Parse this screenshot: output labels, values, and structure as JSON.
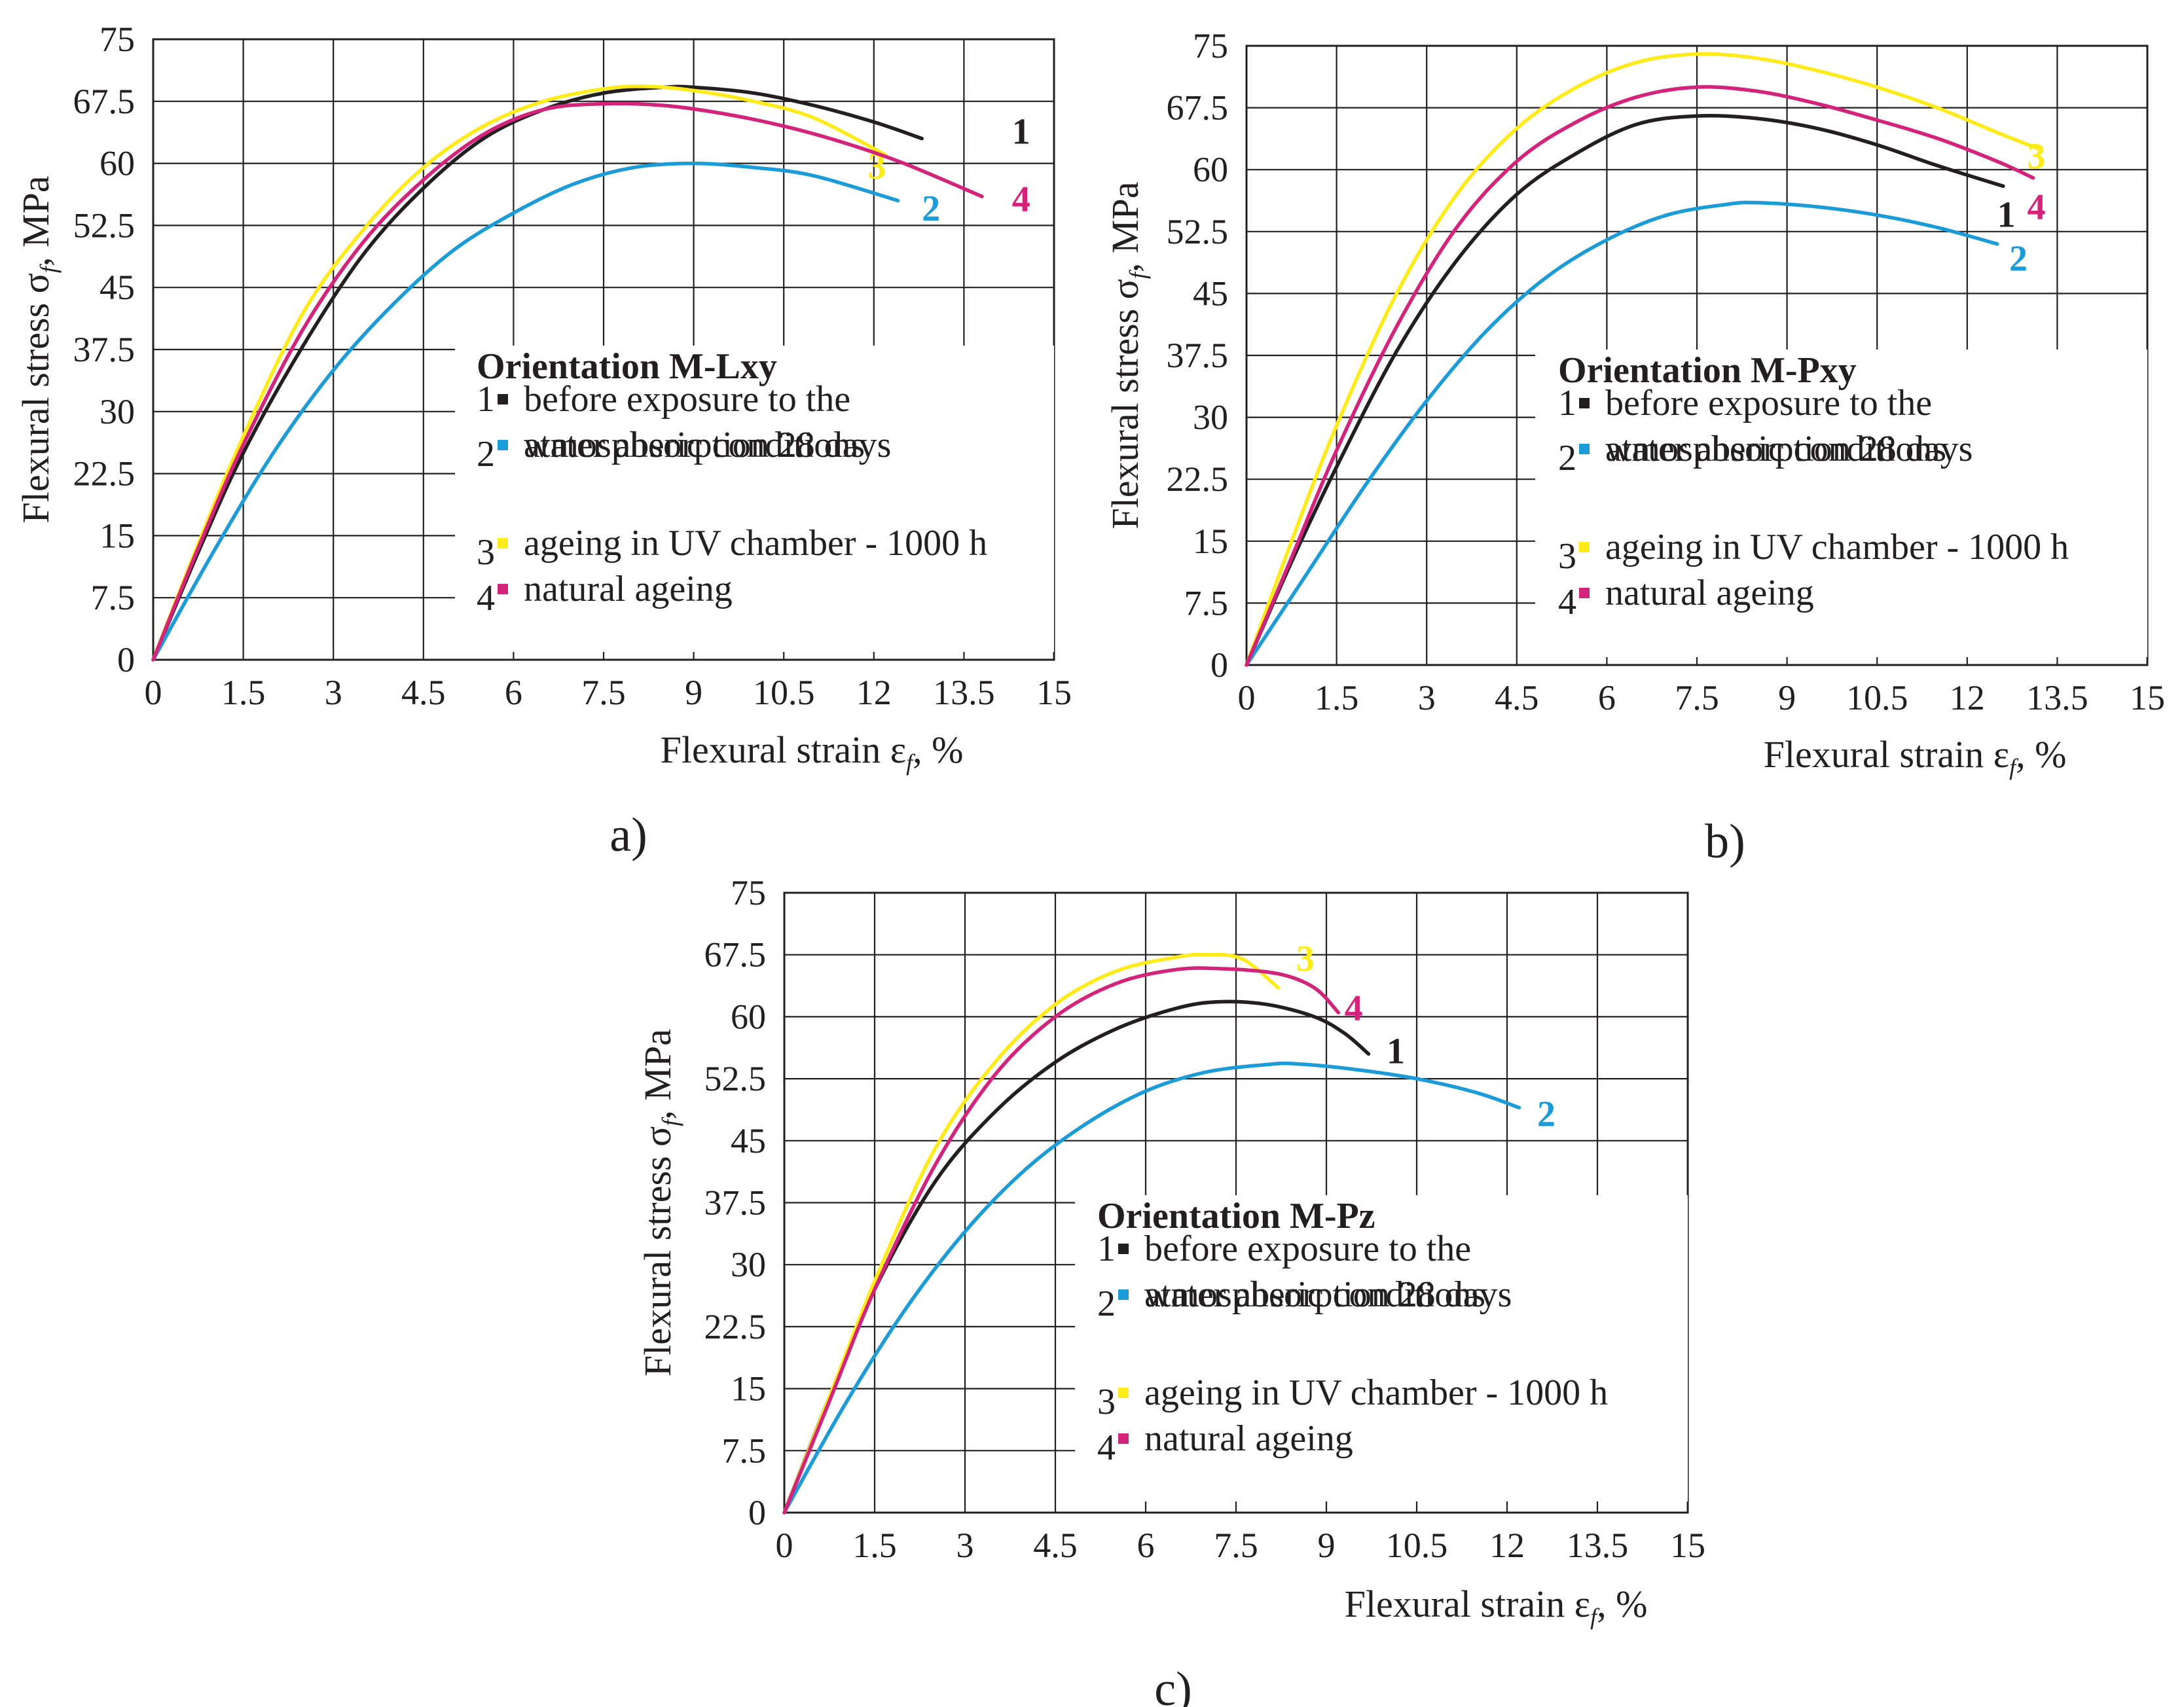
{
  "figure": {
    "colors": {
      "1": "#231f20",
      "2": "#1b9bd7",
      "3": "#ffeb1a",
      "4": "#d4237a",
      "grid": "#231f20",
      "background": "#ffffff"
    },
    "legend_items": [
      {
        "num": "1",
        "lines": [
          "before exposure to the",
          "atmospheric conditions"
        ]
      },
      {
        "num": "2",
        "lines": [
          "water absorption 28 days"
        ]
      },
      {
        "num": "3",
        "lines": [
          "ageing in UV chamber - 1000 h"
        ]
      },
      {
        "num": "4",
        "lines": [
          "natural ageing"
        ]
      }
    ]
  },
  "chart_data": [
    {
      "type": "line",
      "panel_label": "a)",
      "xlabel": "Flexural strain ε",
      "xlabel_sub": "f",
      "xlabel_unit": ", %",
      "ylabel": "Flexural stress σ",
      "ylabel_sub": "f",
      "ylabel_unit": ", MPa",
      "xlim": [
        0,
        15
      ],
      "ylim": [
        0,
        75
      ],
      "xticks": [
        "0",
        "1.5",
        "3",
        "4.5",
        "6",
        "7.5",
        "9",
        "10.5",
        "12",
        "13.5",
        "15"
      ],
      "yticks": [
        "0",
        "7.5",
        "15",
        "22.5",
        "30",
        "37.5",
        "45",
        "52.5",
        "60",
        "67.5",
        "75"
      ],
      "grid": true,
      "legend_title": "Orientation M-Lxy",
      "series": [
        {
          "name": "1",
          "x": [
            0,
            0.75,
            1.5,
            2.5,
            3.5,
            4.5,
            5.5,
            6.5,
            7.5,
            8.5,
            9,
            10,
            11,
            12,
            12.8
          ],
          "y": [
            0,
            13,
            25,
            38,
            49,
            57,
            63,
            66.5,
            68.5,
            69.2,
            69.2,
            68.5,
            67,
            65,
            63
          ]
        },
        {
          "name": "2",
          "x": [
            0,
            1,
            2,
            3,
            4,
            5,
            6,
            7,
            8,
            9,
            10,
            11,
            12.4
          ],
          "y": [
            0,
            13,
            25,
            35,
            43,
            49.5,
            54,
            57.5,
            59.5,
            60,
            59.5,
            58.5,
            55.5
          ]
        },
        {
          "name": "3",
          "x": [
            0,
            0.75,
            1.5,
            2.5,
            3.5,
            4.5,
            5.5,
            6.5,
            7.5,
            8.2,
            9,
            10,
            11,
            12.2
          ],
          "y": [
            0,
            14,
            27,
            42,
            52,
            59.5,
            64.5,
            67.5,
            69,
            69.3,
            68.8,
            67.5,
            65.5,
            61
          ]
        },
        {
          "name": "4",
          "x": [
            0,
            0.75,
            1.5,
            2.5,
            3.5,
            4.5,
            5.5,
            6.5,
            7.5,
            8.5,
            9.5,
            10.5,
            11.5,
            12.5,
            13.8
          ],
          "y": [
            0,
            13.5,
            26,
            40,
            50.5,
            58,
            63.5,
            66.5,
            67.2,
            67,
            66,
            64.5,
            62.5,
            60,
            56
          ]
        }
      ]
    },
    {
      "type": "line",
      "panel_label": "b)",
      "xlabel": "Flexural strain ε",
      "xlabel_sub": "f",
      "xlabel_unit": ", %",
      "ylabel": "Flexural stress σ",
      "ylabel_sub": "f",
      "ylabel_unit": ", MPa",
      "xlim": [
        0,
        15
      ],
      "ylim": [
        0,
        75
      ],
      "xticks": [
        "0",
        "1.5",
        "3",
        "4.5",
        "6",
        "7.5",
        "9",
        "10.5",
        "12",
        "13.5",
        "15"
      ],
      "yticks": [
        "0",
        "7.5",
        "15",
        "22.5",
        "30",
        "37.5",
        "45",
        "52.5",
        "60",
        "67.5",
        "75"
      ],
      "grid": true,
      "legend_title": "Orientation M-Pxy",
      "series": [
        {
          "name": "1",
          "x": [
            0,
            0.75,
            1.5,
            2.5,
            3.5,
            4.5,
            5.5,
            6.5,
            7.5,
            8.5,
            9.5,
            10.5,
            11.5,
            12.6
          ],
          "y": [
            0,
            12.5,
            24,
            38,
            49,
            57,
            62,
            65.5,
            66.5,
            66.2,
            65,
            63,
            60.5,
            58
          ]
        },
        {
          "name": "2",
          "x": [
            0,
            1,
            2,
            3,
            4,
            5,
            6,
            7,
            8,
            8.5,
            9.5,
            10.5,
            11.5,
            12.5
          ],
          "y": [
            0,
            11,
            22,
            32,
            40.5,
            47,
            51.5,
            54.5,
            55.8,
            56,
            55.5,
            54.5,
            53,
            51
          ]
        },
        {
          "name": "3",
          "x": [
            0,
            0.75,
            1.5,
            2.5,
            3.5,
            4.5,
            5.5,
            6.5,
            7.5,
            8.5,
            9.5,
            10.5,
            11.5,
            12.5,
            13.2
          ],
          "y": [
            0,
            15,
            29,
            45,
            57,
            65,
            70,
            73,
            74,
            73.5,
            72,
            70,
            67.5,
            64.5,
            62.5
          ]
        },
        {
          "name": "4",
          "x": [
            0,
            0.75,
            1.5,
            2.5,
            3.5,
            4.5,
            5.5,
            6.5,
            7.5,
            8.5,
            9.5,
            10.5,
            11.5,
            12.5,
            13.1
          ],
          "y": [
            0,
            13,
            26,
            41,
            53,
            61,
            65.8,
            68.8,
            70,
            69.5,
            68,
            66,
            63.8,
            61,
            59
          ]
        }
      ]
    },
    {
      "type": "line",
      "panel_label": "c)",
      "xlabel": "Flexural strain ε",
      "xlabel_sub": "f",
      "xlabel_unit": ", %",
      "ylabel": "Flexural stress σ",
      "ylabel_sub": "f",
      "ylabel_unit": ", MPa",
      "xlim": [
        0,
        15
      ],
      "ylim": [
        0,
        75
      ],
      "xticks": [
        "0",
        "1.5",
        "3",
        "4.5",
        "6",
        "7.5",
        "9",
        "10.5",
        "12",
        "13.5",
        "15"
      ],
      "yticks": [
        "0",
        "7.5",
        "15",
        "22.5",
        "30",
        "37.5",
        "45",
        "52.5",
        "60",
        "67.5",
        "75"
      ],
      "grid": true,
      "legend_title": "Orientation M-Pz",
      "series": [
        {
          "name": "1",
          "x": [
            0,
            0.75,
            1.5,
            2.5,
            3.5,
            4.5,
            5.5,
            6.5,
            7.2,
            8,
            8.8,
            9.3,
            9.7
          ],
          "y": [
            0,
            14,
            27,
            40,
            48.5,
            54.5,
            58.5,
            61,
            61.8,
            61.5,
            60,
            58,
            55.5
          ]
        },
        {
          "name": "2",
          "x": [
            0,
            1,
            2,
            3,
            4,
            5,
            6,
            7,
            8,
            8.5,
            9.5,
            10.5,
            11.5,
            12.2
          ],
          "y": [
            0,
            13,
            24.5,
            34,
            41.5,
            47,
            51,
            53.3,
            54.2,
            54.3,
            53.6,
            52.5,
            50.8,
            49
          ]
        },
        {
          "name": "3",
          "x": [
            0,
            0.75,
            1.5,
            2.5,
            3.5,
            4.5,
            5.5,
            6.5,
            7,
            7.6,
            8.2
          ],
          "y": [
            0,
            14,
            28,
            44,
            54.5,
            61.5,
            65.5,
            67.2,
            67.5,
            67,
            63.5
          ]
        },
        {
          "name": "4",
          "x": [
            0,
            0.75,
            1.5,
            2.5,
            3.5,
            4.5,
            5.5,
            6.5,
            7.3,
            8.2,
            8.8,
            9.2
          ],
          "y": [
            0,
            13.5,
            27,
            42,
            53,
            60,
            64,
            65.7,
            65.8,
            65.2,
            63.5,
            60.5
          ]
        }
      ]
    }
  ]
}
